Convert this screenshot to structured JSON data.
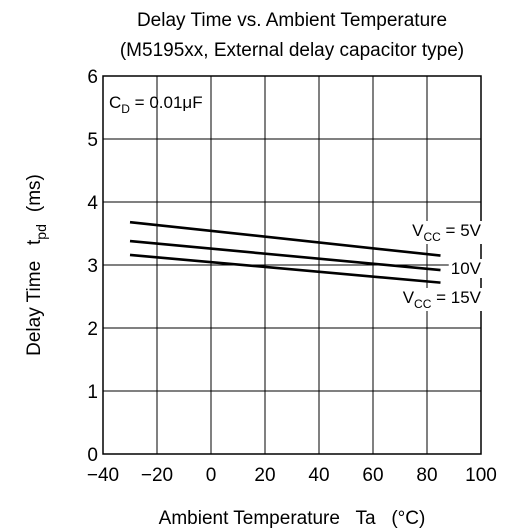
{
  "chart_data": {
    "type": "line",
    "title": "Delay Time vs. Ambient Temperature",
    "subtitle": "(M5195xx, External delay capacitor type)",
    "xlabel": "Ambient Temperature   Ta   (°C)",
    "ylabel": "Delay Time   t",
    "ylabel_sub": "pd",
    "ylabel_unit": "(ms)",
    "xlim": [
      -40,
      100
    ],
    "ylim": [
      0,
      6
    ],
    "xticks": [
      -40,
      -20,
      0,
      20,
      40,
      60,
      80,
      100
    ],
    "xtick_labels": [
      "−40",
      "−20",
      "0",
      "20",
      "40",
      "60",
      "80",
      "100"
    ],
    "yticks": [
      0,
      1,
      2,
      3,
      4,
      5,
      6
    ],
    "ytick_labels": [
      "0",
      "1",
      "2",
      "3",
      "4",
      "5",
      "6"
    ],
    "grid": true,
    "annotation": {
      "main": "C",
      "sub": "D",
      "rest": " = 0.01μF"
    },
    "series": [
      {
        "name": "V_CC = 5V",
        "x": [
          -30,
          85
        ],
        "y": [
          3.68,
          3.15
        ]
      },
      {
        "name": "10V",
        "x": [
          -30,
          85
        ],
        "y": [
          3.38,
          2.92
        ]
      },
      {
        "name": "V_CC = 15V",
        "x": [
          -30,
          85
        ],
        "y": [
          3.16,
          2.72
        ]
      }
    ],
    "series_labels": [
      {
        "main": "V",
        "sub": "CC",
        "rest": " = 5V"
      },
      {
        "main": "10V",
        "sub": "",
        "rest": ""
      },
      {
        "main": "V",
        "sub": "CC",
        "rest": " = 15V"
      }
    ]
  }
}
